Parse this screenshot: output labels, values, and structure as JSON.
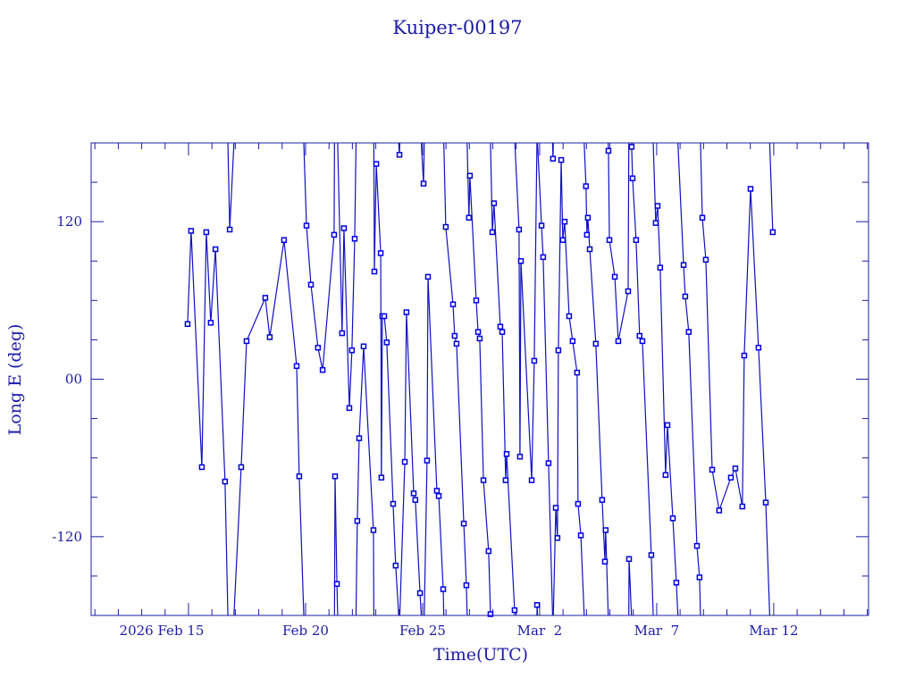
{
  "chart_data": {
    "type": "line",
    "title": "Kuiper-00197",
    "xlabel": "Time(UTC)",
    "ylabel": "Long E (deg)",
    "x_units": "days since 2026 Feb 15 00:00 UTC",
    "xlim": [
      -4.16,
      29.05
    ],
    "ylim": [
      -180,
      180
    ],
    "x_ticks": [
      {
        "value": 0,
        "label": "2026 Feb 15"
      },
      {
        "value": 5,
        "label": "Feb 20"
      },
      {
        "value": 10,
        "label": "Feb 25"
      },
      {
        "value": 15,
        "label": "Mar  2"
      },
      {
        "value": 20,
        "label": "Mar  7"
      },
      {
        "value": 25,
        "label": "Mar 12"
      }
    ],
    "y_ticks": [
      {
        "value": 120,
        "label": "120"
      },
      {
        "value": 0,
        "label": "00"
      },
      {
        "value": -120,
        "label": "-120"
      }
    ],
    "grid": false,
    "wrap_longitude": true,
    "color": "#1010c0",
    "points": [
      [
        -0.04,
        42
      ],
      [
        0.11,
        113
      ],
      [
        0.57,
        -67
      ],
      [
        0.76,
        112
      ],
      [
        0.95,
        43
      ],
      [
        1.15,
        99
      ],
      [
        1.56,
        -78
      ],
      [
        1.76,
        114
      ],
      [
        2.25,
        -67
      ],
      [
        2.48,
        29
      ],
      [
        3.28,
        62
      ],
      [
        3.47,
        32
      ],
      [
        4.08,
        106
      ],
      [
        4.62,
        10
      ],
      [
        4.73,
        -74
      ],
      [
        5.04,
        117
      ],
      [
        5.23,
        72
      ],
      [
        5.53,
        24
      ],
      [
        5.73,
        7
      ],
      [
        6.22,
        110
      ],
      [
        6.26,
        -74
      ],
      [
        6.34,
        -156
      ],
      [
        6.56,
        35
      ],
      [
        6.64,
        115
      ],
      [
        6.87,
        -22
      ],
      [
        6.98,
        22
      ],
      [
        7.1,
        107
      ],
      [
        7.21,
        -108
      ],
      [
        7.29,
        -45
      ],
      [
        7.48,
        25
      ],
      [
        7.9,
        -115
      ],
      [
        7.94,
        82
      ],
      [
        8.02,
        164
      ],
      [
        8.21,
        96
      ],
      [
        8.24,
        -75
      ],
      [
        8.28,
        48
      ],
      [
        8.36,
        48
      ],
      [
        8.47,
        28
      ],
      [
        8.74,
        -95
      ],
      [
        8.85,
        -142
      ],
      [
        9.01,
        171
      ],
      [
        9.24,
        -63
      ],
      [
        9.31,
        51
      ],
      [
        9.62,
        -87
      ],
      [
        9.69,
        -92
      ],
      [
        9.89,
        -163
      ],
      [
        10.04,
        149
      ],
      [
        10.19,
        -62
      ],
      [
        10.23,
        78
      ],
      [
        10.61,
        -85
      ],
      [
        10.69,
        -89
      ],
      [
        10.88,
        -160
      ],
      [
        10.99,
        116
      ],
      [
        11.3,
        57
      ],
      [
        11.37,
        33
      ],
      [
        11.45,
        27
      ],
      [
        11.76,
        -110
      ],
      [
        11.87,
        -157
      ],
      [
        11.98,
        123
      ],
      [
        12.02,
        155
      ],
      [
        12.29,
        60
      ],
      [
        12.37,
        36
      ],
      [
        12.44,
        31
      ],
      [
        12.6,
        -77
      ],
      [
        12.82,
        -131
      ],
      [
        12.9,
        -179
      ],
      [
        12.98,
        112
      ],
      [
        13.05,
        134
      ],
      [
        13.32,
        40
      ],
      [
        13.4,
        36
      ],
      [
        13.55,
        -77
      ],
      [
        13.59,
        -57
      ],
      [
        13.93,
        -176
      ],
      [
        14.12,
        114
      ],
      [
        14.16,
        -59
      ],
      [
        14.2,
        90
      ],
      [
        14.66,
        -77
      ],
      [
        14.77,
        14
      ],
      [
        14.89,
        -172
      ],
      [
        15.08,
        117
      ],
      [
        15.15,
        93
      ],
      [
        15.38,
        -64
      ],
      [
        15.57,
        168
      ],
      [
        15.69,
        -98
      ],
      [
        15.76,
        -121
      ],
      [
        15.8,
        22
      ],
      [
        15.92,
        167
      ],
      [
        15.99,
        106
      ],
      [
        16.07,
        120
      ],
      [
        16.26,
        48
      ],
      [
        16.41,
        29
      ],
      [
        16.6,
        5
      ],
      [
        16.64,
        -95
      ],
      [
        16.76,
        -119
      ],
      [
        16.98,
        147
      ],
      [
        17.02,
        110
      ],
      [
        17.06,
        123
      ],
      [
        17.14,
        99
      ],
      [
        17.4,
        27
      ],
      [
        17.67,
        -92
      ],
      [
        17.79,
        -139
      ],
      [
        17.82,
        -115
      ],
      [
        17.94,
        174
      ],
      [
        17.98,
        106
      ],
      [
        18.21,
        78
      ],
      [
        18.36,
        29
      ],
      [
        18.78,
        67
      ],
      [
        18.82,
        -137
      ],
      [
        18.93,
        177
      ],
      [
        18.97,
        153
      ],
      [
        19.12,
        106
      ],
      [
        19.27,
        33
      ],
      [
        19.39,
        29
      ],
      [
        19.77,
        -134
      ],
      [
        19.96,
        119
      ],
      [
        20.04,
        132
      ],
      [
        20.15,
        85
      ],
      [
        20.38,
        -73
      ],
      [
        20.46,
        -35
      ],
      [
        20.69,
        -106
      ],
      [
        20.84,
        -155
      ],
      [
        21.15,
        87
      ],
      [
        21.22,
        63
      ],
      [
        21.37,
        36
      ],
      [
        21.72,
        -127
      ],
      [
        21.83,
        -151
      ],
      [
        21.95,
        123
      ],
      [
        22.1,
        91
      ],
      [
        22.37,
        -69
      ],
      [
        22.67,
        -100
      ],
      [
        23.17,
        -75
      ],
      [
        23.36,
        -68
      ],
      [
        23.66,
        -97
      ],
      [
        23.74,
        18
      ],
      [
        24.01,
        145
      ],
      [
        24.35,
        24
      ],
      [
        24.66,
        -94
      ],
      [
        24.96,
        112
      ]
    ]
  }
}
